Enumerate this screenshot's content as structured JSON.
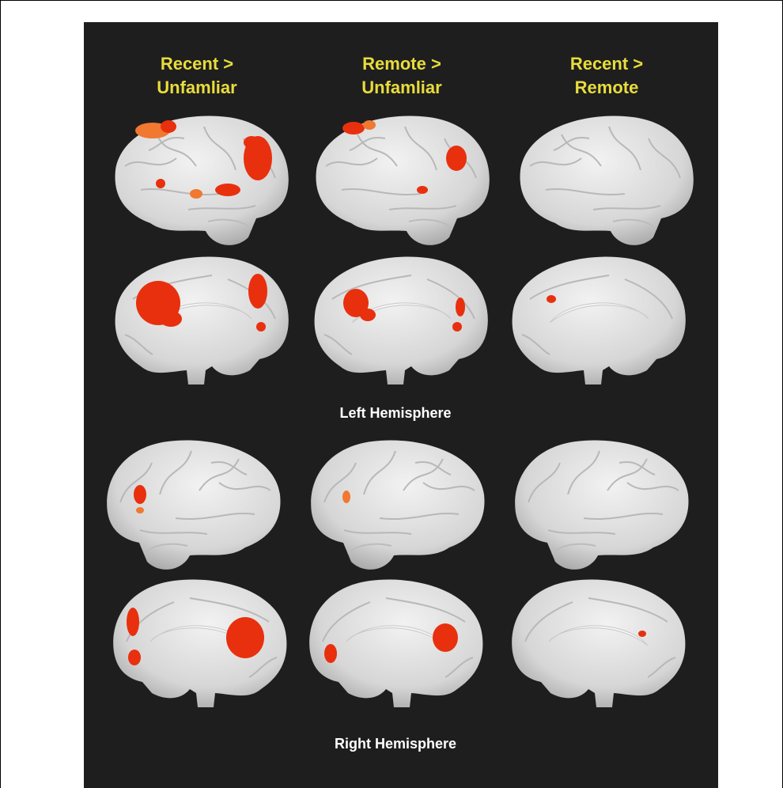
{
  "columns": [
    {
      "line1": "Recent >",
      "line2": "Unfamliar"
    },
    {
      "line1": "Remote >",
      "line2": "Unfamliar"
    },
    {
      "line1": "Recent >",
      "line2": "Remote"
    }
  ],
  "sections": [
    "Left Hemisphere",
    "Right Hemisphere"
  ]
}
